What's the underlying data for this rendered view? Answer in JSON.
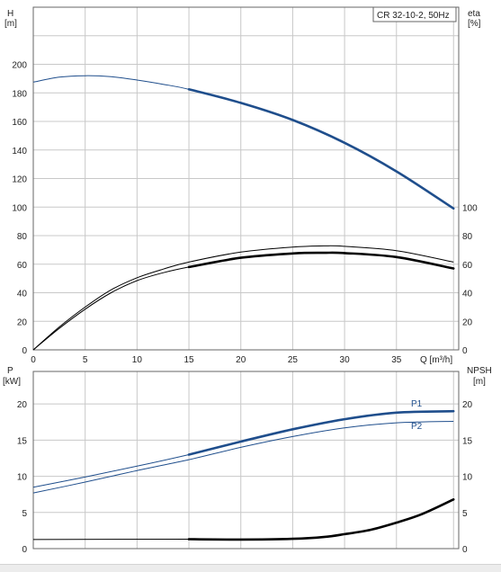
{
  "legend_box": "CR 32-10-2, 50Hz",
  "colors": {
    "blue": "#1f4e8c",
    "black": "#000000",
    "grid": "#c8c8c8",
    "frame": "#666666"
  },
  "chart_data": [
    {
      "type": "line",
      "title": "CR 32-10-2, 50Hz",
      "xlabel": "Q [m³/h]",
      "xticks": [
        0,
        5,
        10,
        15,
        20,
        25,
        30,
        35
      ],
      "xlim": [
        0,
        41.0
      ],
      "grid": true,
      "y_left": {
        "label_lines": [
          "H",
          "[m]"
        ],
        "ticks": [
          0,
          20,
          40,
          60,
          80,
          100,
          120,
          140,
          160,
          180,
          200
        ],
        "ylim": [
          0,
          240
        ]
      },
      "y_right": {
        "label_lines": [
          "eta",
          "[%]"
        ],
        "ticks": [
          0,
          20,
          40,
          60,
          80,
          100
        ],
        "ylim": [
          0,
          240
        ]
      },
      "series": [
        {
          "axis": "left",
          "color": "#1f4e8c",
          "x": [
            0,
            2.5,
            5,
            7.5,
            10,
            12.5,
            15,
            20,
            25,
            30,
            35,
            40.5
          ],
          "y": [
            187.5,
            191,
            192,
            191.3,
            189,
            186,
            182.5,
            173,
            161,
            145,
            125,
            99
          ],
          "bold_from": 15
        },
        {
          "axis": "right",
          "color": "#000000",
          "x": [
            0,
            2.5,
            5,
            7.5,
            10,
            12.5,
            15,
            20,
            25,
            28,
            30,
            35,
            40.5
          ],
          "y": [
            0,
            16,
            30,
            42,
            50.5,
            56.5,
            61.5,
            68.5,
            72,
            72.8,
            72.5,
            69.5,
            61.5
          ],
          "bold_from": null
        },
        {
          "axis": "right",
          "color": "#000000",
          "x": [
            0,
            2.5,
            5,
            7.5,
            10,
            12.5,
            15,
            20,
            25,
            28,
            30,
            35,
            40.5
          ],
          "y": [
            0,
            15,
            28.5,
            40,
            48.5,
            54,
            58,
            64.5,
            67.5,
            68,
            67.8,
            65,
            57
          ],
          "bold_from": 15
        }
      ]
    },
    {
      "type": "line",
      "xticks": [
        0,
        5,
        10,
        15,
        20,
        25,
        30,
        35
      ],
      "xlim": [
        0,
        41.0
      ],
      "grid": true,
      "y_left": {
        "label_lines": [
          "P",
          "[kW]"
        ],
        "ticks": [
          0,
          5,
          10,
          15,
          20
        ],
        "ylim": [
          0,
          24.5
        ]
      },
      "y_right": {
        "label_lines": [
          "NPSH",
          "[m]"
        ],
        "ticks": [
          0,
          5,
          10,
          15,
          20
        ],
        "ylim": [
          0,
          24.5
        ]
      },
      "series": [
        {
          "name": "P1",
          "axis": "left",
          "color": "#1f4e8c",
          "x": [
            0,
            5,
            10,
            15,
            20,
            25,
            30,
            35,
            40.5
          ],
          "y": [
            8.5,
            9.9,
            11.4,
            13.0,
            14.8,
            16.5,
            17.9,
            18.8,
            19.0
          ],
          "bold_from": 15
        },
        {
          "name": "P2",
          "axis": "left",
          "color": "#1f4e8c",
          "x": [
            0,
            5,
            10,
            15,
            20,
            25,
            30,
            35,
            40.5
          ],
          "y": [
            7.7,
            9.2,
            10.8,
            12.3,
            14.0,
            15.5,
            16.7,
            17.4,
            17.6
          ],
          "bold_from": null
        },
        {
          "axis": "right",
          "color": "#000000",
          "x": [
            0,
            15,
            20,
            25,
            28,
            30,
            32.5,
            35,
            37.5,
            40.5
          ],
          "y": [
            1.25,
            1.3,
            1.25,
            1.35,
            1.6,
            2.0,
            2.6,
            3.6,
            4.8,
            6.8
          ],
          "bold_from": 15
        }
      ]
    }
  ]
}
